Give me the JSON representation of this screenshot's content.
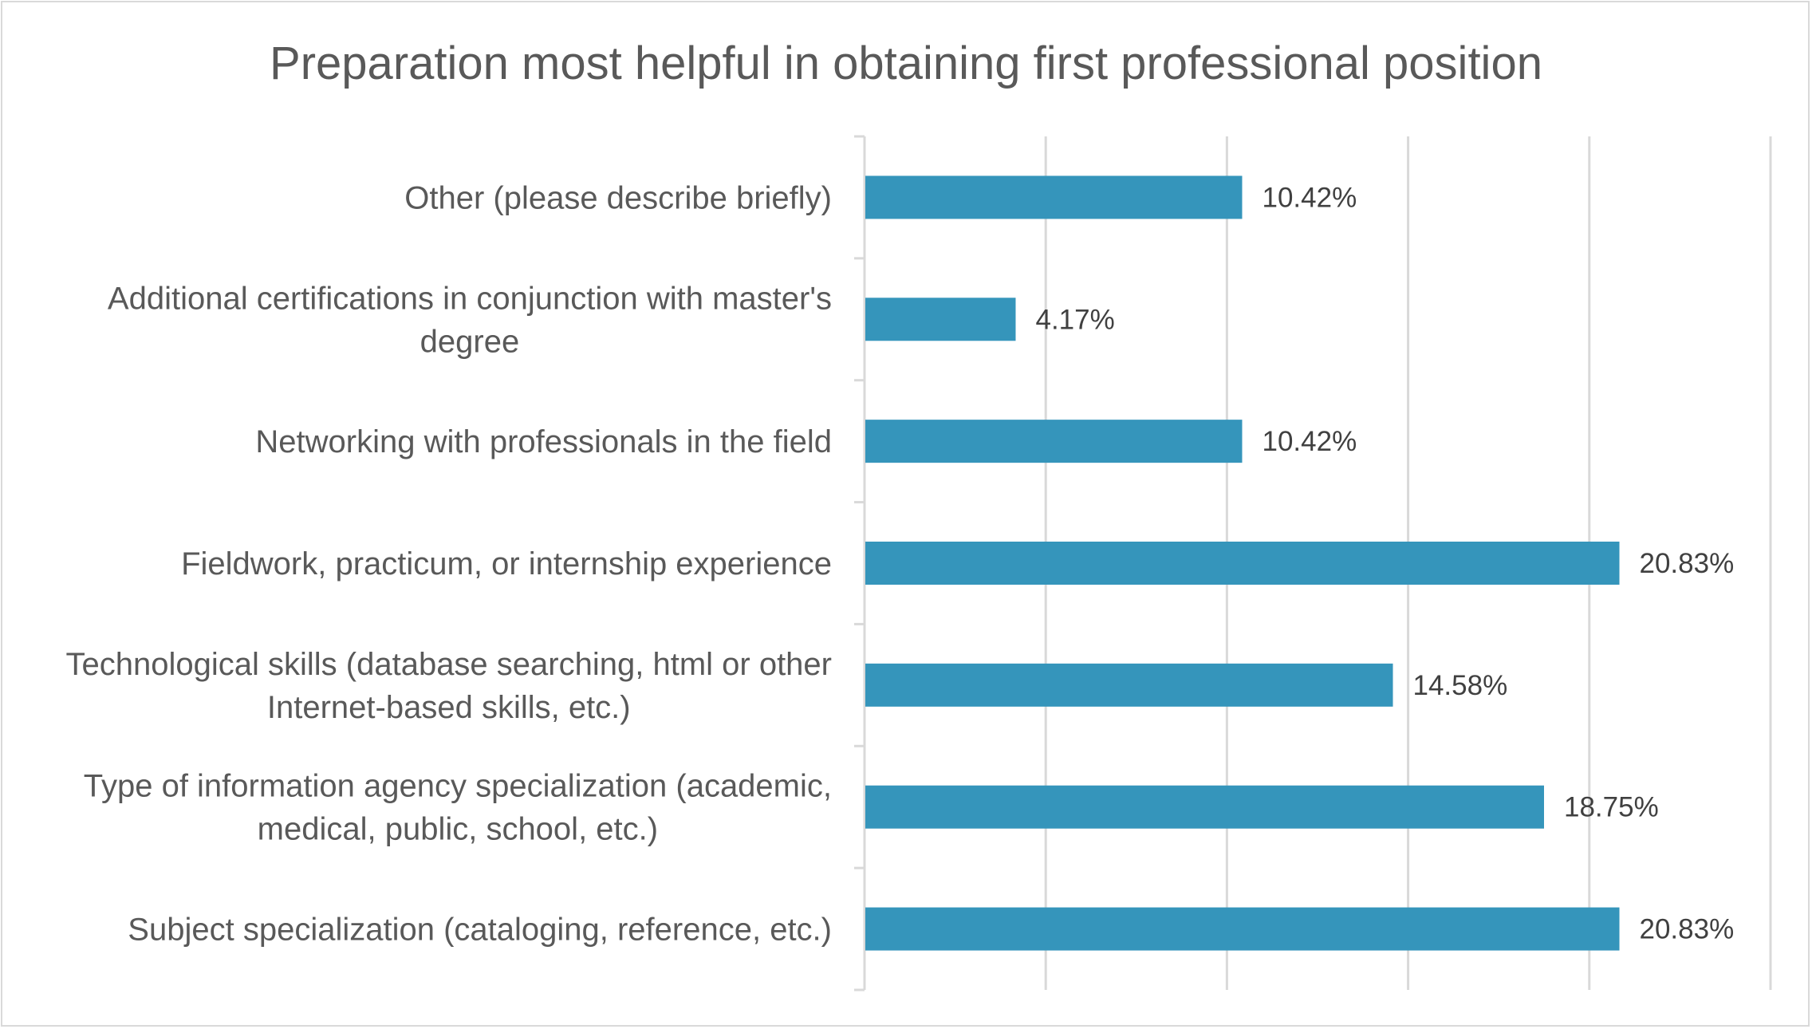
{
  "chart_data": {
    "type": "bar",
    "orientation": "horizontal",
    "title": "Preparation most helpful in obtaining first professional position",
    "xlabel": "",
    "ylabel": "",
    "xlim": [
      0,
      25
    ],
    "grid": true,
    "legend": "none",
    "bar_color": "#3595bb",
    "categories": [
      "Other (please describe briefly)",
      "Additional certifications in conjunction with master's degree",
      "Networking with professionals in the field",
      "Fieldwork, practicum, or internship experience",
      "Technological skills (database searching, html or other Internet-based skills, etc.)",
      "Type of information agency specialization (academic, medical, public, school, etc.)",
      "Subject specialization (cataloging, reference, etc.)"
    ],
    "category_lines": [
      [
        "Other (please describe briefly)"
      ],
      [
        "Additional certifications in conjunction with master's",
        "degree"
      ],
      [
        "Networking with professionals in the field"
      ],
      [
        "Fieldwork, practicum, or internship experience"
      ],
      [
        "Technological skills (database searching, html or other",
        "Internet-based skills, etc.)"
      ],
      [
        "Type of information agency specialization (academic,",
        "medical, public, school, etc.)"
      ],
      [
        "Subject specialization (cataloging, reference, etc.)"
      ]
    ],
    "values": [
      10.42,
      4.17,
      10.42,
      20.83,
      14.58,
      18.75,
      20.83
    ],
    "data_labels": [
      "10.42%",
      "4.17%",
      "10.42%",
      "20.83%",
      "14.58%",
      "18.75%",
      "20.83%"
    ]
  }
}
